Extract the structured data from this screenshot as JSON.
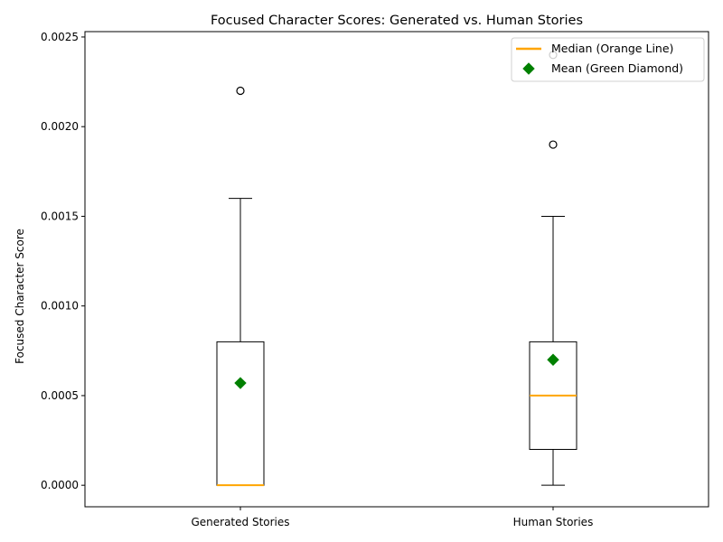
{
  "chart_data": {
    "type": "box",
    "title": "Focused Character Scores: Generated vs. Human Stories",
    "xlabel": "",
    "ylabel": "Focused Character Score",
    "ylim": [
      -0.00012,
      0.00253
    ],
    "yticks": [
      "0.0000",
      "0.0005",
      "0.0010",
      "0.0015",
      "0.0020",
      "0.0025"
    ],
    "ytick_values": [
      0,
      0.0005,
      0.001,
      0.0015,
      0.002,
      0.0025
    ],
    "categories": [
      "Generated Stories",
      "Human Stories"
    ],
    "boxes": [
      {
        "whisker_low": 0.0,
        "q1": 0.0,
        "median": 0.0,
        "q3": 0.0008,
        "whisker_high": 0.0016,
        "mean": 0.00057,
        "outliers": [
          0.0022
        ]
      },
      {
        "whisker_low": 0.0,
        "q1": 0.0002,
        "median": 0.0005,
        "q3": 0.0008,
        "whisker_high": 0.0015,
        "mean": 0.0007,
        "outliers": [
          0.0019,
          0.0024
        ]
      }
    ],
    "legend": {
      "placement": "top-right",
      "entries": [
        {
          "label": "Median (Orange Line)",
          "marker": "line",
          "color": "#ffa500"
        },
        {
          "label": "Mean (Green Diamond)",
          "marker": "diamond",
          "color": "#008000"
        }
      ]
    },
    "colors": {
      "median": "#ffa500",
      "mean": "#008000",
      "box": "#000000"
    }
  }
}
